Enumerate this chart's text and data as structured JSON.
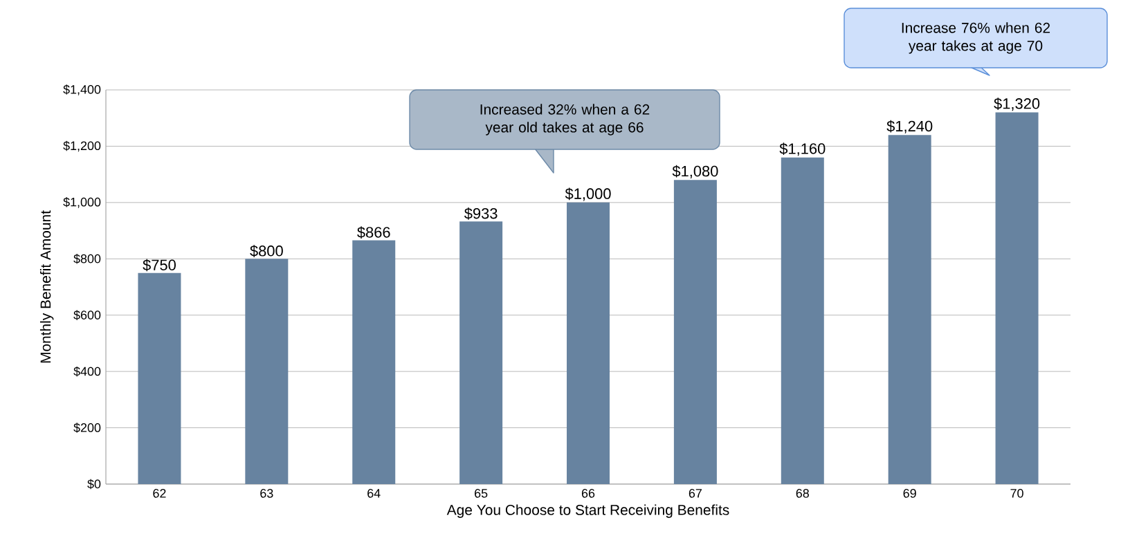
{
  "chart_data": {
    "type": "bar",
    "xlabel": "Age You Choose to Start Receiving Benefits",
    "ylabel": "Monthly Benefit Amount",
    "categories": [
      "62",
      "63",
      "64",
      "65",
      "66",
      "67",
      "68",
      "69",
      "70"
    ],
    "values": [
      750,
      800,
      866,
      933,
      1000,
      1080,
      1160,
      1240,
      1320
    ],
    "value_labels": [
      "$750",
      "$800",
      "$866",
      "$933",
      "$1,000",
      "$1,080",
      "$1,160",
      "$1,240",
      "$1,320"
    ],
    "color": "#6783a0",
    "ylim": [
      0,
      1400
    ],
    "yticks": [
      {
        "value": 0,
        "label": "$0"
      },
      {
        "value": 200,
        "label": "$200"
      },
      {
        "value": 400,
        "label": "$400"
      },
      {
        "value": 600,
        "label": "$600"
      },
      {
        "value": 800,
        "label": "$800"
      },
      {
        "value": 1000,
        "label": "$1,000"
      },
      {
        "value": 1200,
        "label": "$1,200"
      },
      {
        "value": 1400,
        "label": "$1,400"
      }
    ],
    "grid": "y",
    "annotations": [
      "Increased 32% when a 62 year old takes at age 66",
      "Increase 76% when 62 year takes at age 70"
    ]
  }
}
